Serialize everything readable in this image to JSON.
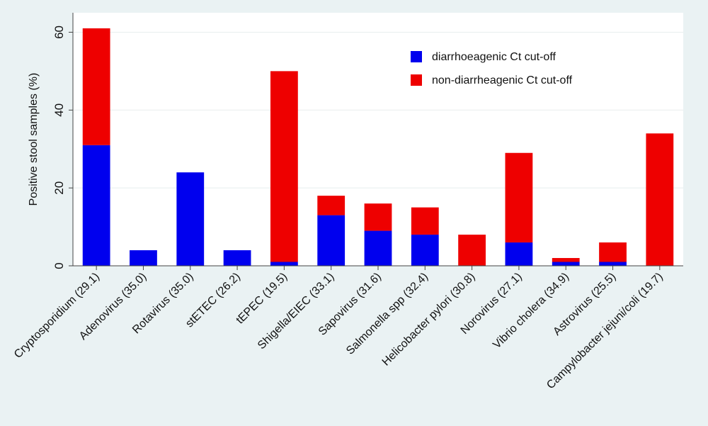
{
  "chart_data": {
    "type": "bar",
    "stacked": true,
    "title": "",
    "xlabel": "",
    "ylabel": "Positive stool samples (%)",
    "ylim": [
      0,
      65
    ],
    "yticks": [
      0,
      20,
      40,
      60
    ],
    "grid": true,
    "legend_position": "top-right",
    "categories": [
      "Cryptosporidium (29.1)",
      "Adenovirus (35.0)",
      "Rotavirus (35.0)",
      "stETEC (26.2)",
      "tEPEC (19.5)",
      "Shigella/EIEC (33.1)",
      "Sapovirus (31.6)",
      "Salmonella spp (32.4)",
      "Helicobacter pylori (30.8)",
      "Norovirus (27.1)",
      "Vibrio cholera (34.9)",
      "Astrovirus (25.5)",
      "Campylobacter jejuni/coli (19.7)"
    ],
    "series": [
      {
        "name": "diarrhoeagenic Ct cut-off",
        "color": "#0000ee",
        "values": [
          31,
          4,
          24,
          4,
          1,
          13,
          9,
          8,
          0,
          6,
          1,
          1,
          0
        ]
      },
      {
        "name": "non-diarrheagenic Ct cut-off",
        "color": "#ee0000",
        "values": [
          30,
          0,
          0,
          0,
          49,
          5,
          7,
          7,
          8,
          23,
          1,
          5,
          34
        ]
      }
    ]
  }
}
